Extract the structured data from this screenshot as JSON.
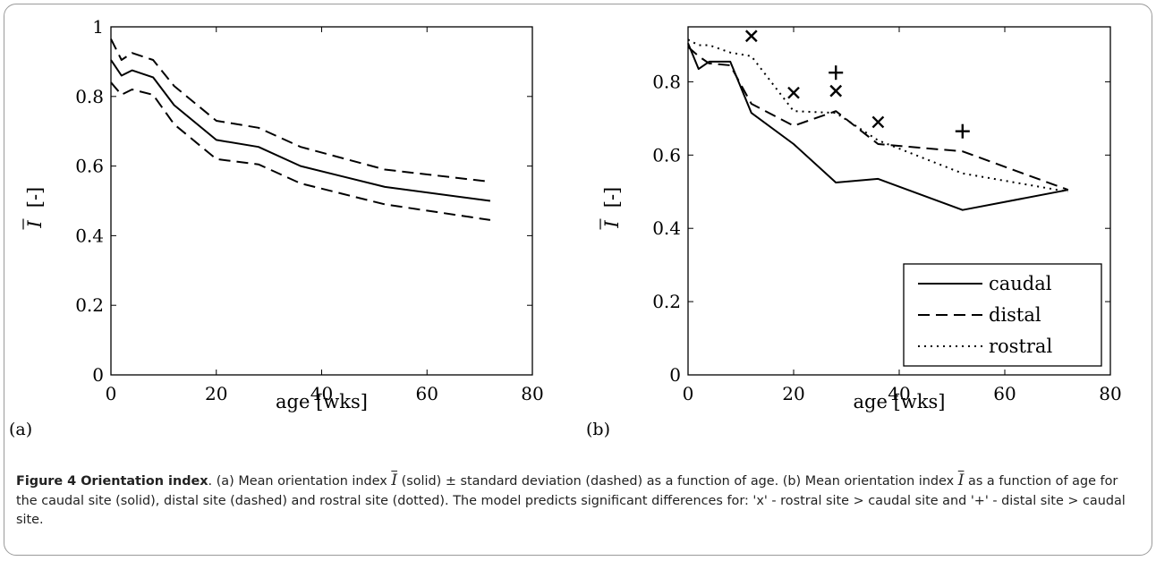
{
  "chart_data": [
    {
      "type": "line",
      "panel_label": "(a)",
      "xlabel": "age [wks]",
      "ylabel_symbol": "I",
      "ylabel_unit": "[-]",
      "xlim": [
        0,
        80
      ],
      "ylim": [
        0,
        1
      ],
      "xticks": [
        0,
        20,
        40,
        60,
        80
      ],
      "yticks": [
        0,
        0.2,
        0.4,
        0.6,
        0.8,
        1
      ],
      "ytick_labels": [
        "0",
        "0.2",
        "0.4",
        "0.6",
        "0.8",
        "1"
      ],
      "grid": false,
      "series": [
        {
          "style": "solid",
          "x": [
            0,
            2,
            4,
            8,
            12,
            20,
            28,
            36,
            52,
            72
          ],
          "y": [
            0.905,
            0.86,
            0.875,
            0.855,
            0.775,
            0.675,
            0.655,
            0.6,
            0.54,
            0.5
          ]
        },
        {
          "style": "dashed",
          "x": [
            0,
            2,
            4,
            8,
            12,
            20,
            28,
            36,
            52,
            72
          ],
          "y": [
            0.965,
            0.905,
            0.925,
            0.905,
            0.83,
            0.73,
            0.71,
            0.655,
            0.59,
            0.555
          ]
        },
        {
          "style": "dashed",
          "x": [
            0,
            2,
            4,
            8,
            12,
            20,
            28,
            36,
            52,
            72
          ],
          "y": [
            0.84,
            0.805,
            0.82,
            0.805,
            0.72,
            0.62,
            0.605,
            0.55,
            0.49,
            0.445
          ]
        }
      ]
    },
    {
      "type": "line",
      "panel_label": "(b)",
      "xlabel": "age [wks]",
      "ylabel_symbol": "I",
      "ylabel_unit": "[-]",
      "xlim": [
        0,
        80
      ],
      "ylim": [
        0,
        0.95
      ],
      "xticks": [
        0,
        20,
        40,
        60,
        80
      ],
      "yticks": [
        0,
        0.2,
        0.4,
        0.6,
        0.8
      ],
      "ytick_labels": [
        "0",
        "0.2",
        "0.4",
        "0.6",
        "0.8"
      ],
      "grid": false,
      "legend_position": "bottom-right",
      "series": [
        {
          "name": "caudal",
          "style": "solid",
          "x": [
            0,
            2,
            4,
            8,
            12,
            20,
            28,
            36,
            52,
            72
          ],
          "y": [
            0.905,
            0.835,
            0.855,
            0.855,
            0.715,
            0.63,
            0.525,
            0.535,
            0.45,
            0.505
          ]
        },
        {
          "name": "distal",
          "style": "dashed",
          "x": [
            0,
            2,
            4,
            8,
            12,
            20,
            28,
            36,
            52,
            72
          ],
          "y": [
            0.895,
            0.87,
            0.85,
            0.845,
            0.74,
            0.68,
            0.72,
            0.63,
            0.61,
            0.505
          ]
        },
        {
          "name": "rostral",
          "style": "dotted",
          "x": [
            0,
            2,
            4,
            8,
            12,
            20,
            28,
            36,
            52,
            72
          ],
          "y": [
            0.915,
            0.9,
            0.9,
            0.88,
            0.87,
            0.72,
            0.715,
            0.64,
            0.55,
            0.5
          ]
        }
      ],
      "markers": [
        {
          "symbol": "x",
          "x": 12,
          "y": 0.925
        },
        {
          "symbol": "x",
          "x": 20,
          "y": 0.77
        },
        {
          "symbol": "x",
          "x": 28,
          "y": 0.775
        },
        {
          "symbol": "x",
          "x": 36,
          "y": 0.69
        },
        {
          "symbol": "+",
          "x": 28,
          "y": 0.825
        },
        {
          "symbol": "+",
          "x": 52,
          "y": 0.665
        }
      ]
    }
  ],
  "caption": {
    "title": "Figure 4 Orientation index",
    "seg1": ". (a) Mean orientation index ",
    "sym1": "I",
    "seg2": " (solid) ± standard deviation (dashed) as a function of age. (b) Mean orientation index ",
    "sym2": "I",
    "seg3": " as a function of age for the caudal site (solid), distal site (dashed) and rostral site (dotted). The model predicts significant differences for: 'x' - rostral site > caudal site and '+' - distal site > caudal site."
  }
}
